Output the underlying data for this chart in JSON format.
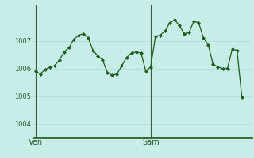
{
  "background_color": "#c8ece8",
  "grid_color": "#b0ddd8",
  "line_color": "#1a5e1a",
  "marker_color": "#1a5e1a",
  "ylim": [
    1003.5,
    1008.3
  ],
  "yticks": [
    1004,
    1005,
    1006,
    1007
  ],
  "x_labels": [
    [
      0,
      "Ven"
    ],
    [
      24,
      "Sam"
    ]
  ],
  "vlines": [
    0,
    24
  ],
  "data_x": [
    0,
    1,
    2,
    3,
    4,
    5,
    6,
    7,
    8,
    9,
    10,
    11,
    12,
    13,
    14,
    15,
    16,
    17,
    18,
    19,
    20,
    21,
    22,
    23,
    24,
    25,
    26,
    27,
    28,
    29,
    30,
    31,
    32,
    33,
    34,
    35,
    36,
    37,
    38,
    39,
    40,
    41,
    42,
    43
  ],
  "data_y": [
    1005.9,
    1005.8,
    1005.95,
    1006.05,
    1006.1,
    1006.3,
    1006.6,
    1006.75,
    1007.05,
    1007.2,
    1007.25,
    1007.1,
    1006.65,
    1006.45,
    1006.3,
    1005.85,
    1005.75,
    1005.8,
    1006.1,
    1006.4,
    1006.55,
    1006.6,
    1006.55,
    1005.9,
    1006.05,
    1007.15,
    1007.2,
    1007.35,
    1007.65,
    1007.75,
    1007.55,
    1007.25,
    1007.3,
    1007.7,
    1007.65,
    1007.1,
    1006.85,
    1006.15,
    1006.05,
    1006.0,
    1006.0,
    1006.7,
    1006.65,
    1004.95
  ],
  "xlim": [
    -0.5,
    45
  ],
  "bottom_line_color": "#2d6e2d",
  "vline_color": "#3a5a3a"
}
